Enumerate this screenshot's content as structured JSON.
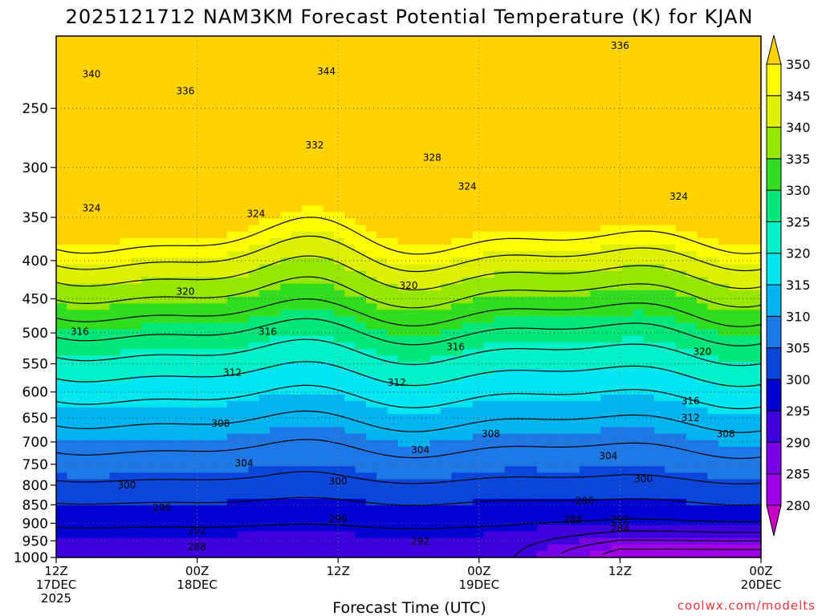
{
  "chart_data": {
    "type": "contour",
    "title": "2025121712 NAM3KM Forecast Potential Temperature (K) for KJAN",
    "xlabel": "Forecast Time (UTC)",
    "ylabel": "",
    "yscale": "log-pressure",
    "ylim": [
      1000,
      200
    ],
    "yticks": [
      250,
      300,
      350,
      400,
      450,
      500,
      550,
      600,
      650,
      700,
      750,
      800,
      850,
      900,
      950,
      1000
    ],
    "xlim": [
      "2025-12-17T12:00Z",
      "2025-12-20T00:00Z"
    ],
    "xticks": [
      {
        "time": "2025-12-17T12:00Z",
        "lines": [
          "12Z",
          "17DEC",
          "2025"
        ]
      },
      {
        "time": "2025-12-18T00:00Z",
        "lines": [
          "00Z",
          "18DEC"
        ]
      },
      {
        "time": "2025-12-18T12:00Z",
        "lines": [
          "12Z"
        ]
      },
      {
        "time": "2025-12-19T00:00Z",
        "lines": [
          "00Z",
          "19DEC"
        ]
      },
      {
        "time": "2025-12-19T12:00Z",
        "lines": [
          "12Z"
        ]
      },
      {
        "time": "2025-12-20T00:00Z",
        "lines": [
          "00Z",
          "20DEC"
        ]
      }
    ],
    "grid": true,
    "colorbar": {
      "levels": [
        280,
        285,
        290,
        295,
        300,
        305,
        310,
        315,
        320,
        325,
        330,
        335,
        340,
        345,
        350
      ],
      "colors": [
        "#c800c8",
        "#a000e6",
        "#7800e6",
        "#3c00dc",
        "#0000d2",
        "#0a46dc",
        "#1e78e6",
        "#00b4f0",
        "#00e6f0",
        "#00f0c8",
        "#00e678",
        "#32dc1e",
        "#96e600",
        "#dcf000",
        "#ffff00",
        "#ffd200"
      ],
      "extend": "both",
      "placement": "right"
    },
    "contour_labels": [
      {
        "time": "2025-12-17T15:00Z",
        "pressure": 225,
        "value": 340
      },
      {
        "time": "2025-12-18T11:00Z",
        "pressure": 223,
        "value": 344
      },
      {
        "time": "2025-12-19T12:00Z",
        "pressure": 206,
        "value": 336
      },
      {
        "time": "2025-12-17T23:00Z",
        "pressure": 237,
        "value": 336
      },
      {
        "time": "2025-12-18T10:00Z",
        "pressure": 280,
        "value": 332
      },
      {
        "time": "2025-12-18T20:00Z",
        "pressure": 291,
        "value": 328
      },
      {
        "time": "2025-12-18T23:00Z",
        "pressure": 318,
        "value": 324
      },
      {
        "time": "2025-12-19T17:00Z",
        "pressure": 328,
        "value": 324
      },
      {
        "time": "2025-12-17T15:00Z",
        "pressure": 340,
        "value": 324
      },
      {
        "time": "2025-12-18T05:00Z",
        "pressure": 346,
        "value": 324
      },
      {
        "time": "2025-12-17T23:00Z",
        "pressure": 440,
        "value": 320
      },
      {
        "time": "2025-12-18T18:00Z",
        "pressure": 432,
        "value": 320
      },
      {
        "time": "2025-12-19T19:00Z",
        "pressure": 530,
        "value": 320
      },
      {
        "time": "2025-12-17T14:00Z",
        "pressure": 498,
        "value": 316
      },
      {
        "time": "2025-12-18T06:00Z",
        "pressure": 498,
        "value": 316
      },
      {
        "time": "2025-12-18T22:00Z",
        "pressure": 522,
        "value": 316
      },
      {
        "time": "2025-12-18T03:00Z",
        "pressure": 565,
        "value": 312
      },
      {
        "time": "2025-12-18T17:00Z",
        "pressure": 583,
        "value": 312
      },
      {
        "time": "2025-12-19T18:00Z",
        "pressure": 617,
        "value": 316
      },
      {
        "time": "2025-12-19T18:00Z",
        "pressure": 650,
        "value": 312
      },
      {
        "time": "2025-12-18T02:00Z",
        "pressure": 661,
        "value": 308
      },
      {
        "time": "2025-12-19T01:00Z",
        "pressure": 683,
        "value": 308
      },
      {
        "time": "2025-12-19T21:00Z",
        "pressure": 683,
        "value": 308
      },
      {
        "time": "2025-12-18T04:00Z",
        "pressure": 748,
        "value": 304
      },
      {
        "time": "2025-12-18T19:00Z",
        "pressure": 718,
        "value": 304
      },
      {
        "time": "2025-12-19T11:00Z",
        "pressure": 731,
        "value": 304
      },
      {
        "time": "2025-12-17T18:00Z",
        "pressure": 800,
        "value": 300
      },
      {
        "time": "2025-12-18T12:00Z",
        "pressure": 790,
        "value": 300
      },
      {
        "time": "2025-12-19T14:00Z",
        "pressure": 785,
        "value": 300
      },
      {
        "time": "2025-12-17T21:00Z",
        "pressure": 858,
        "value": 296
      },
      {
        "time": "2025-12-18T12:00Z",
        "pressure": 888,
        "value": 296
      },
      {
        "time": "2025-12-19T09:00Z",
        "pressure": 840,
        "value": 296
      },
      {
        "time": "2025-12-18T00:00Z",
        "pressure": 920,
        "value": 292
      },
      {
        "time": "2025-12-18T19:00Z",
        "pressure": 952,
        "value": 292
      },
      {
        "time": "2025-12-19T12:00Z",
        "pressure": 890,
        "value": 292
      },
      {
        "time": "2025-12-19T08:00Z",
        "pressure": 890,
        "value": 288
      },
      {
        "time": "2025-12-18T00:00Z",
        "pressure": 968,
        "value": 288
      },
      {
        "time": "2025-12-19T12:00Z",
        "pressure": 915,
        "value": 284
      }
    ]
  },
  "credit": "coolwx.com/modelts"
}
